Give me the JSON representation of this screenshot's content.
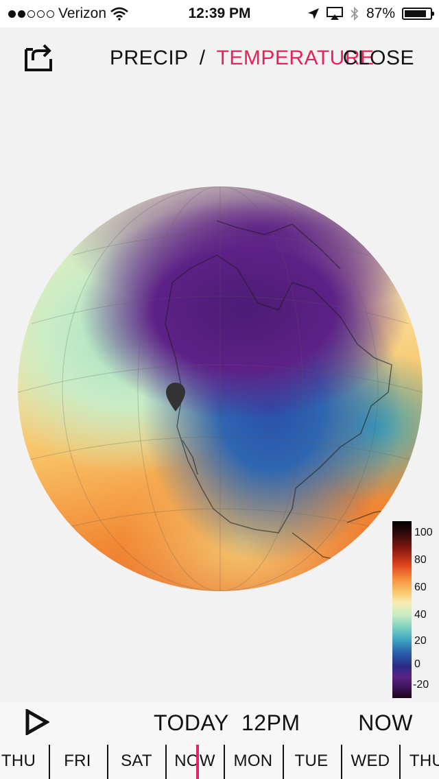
{
  "status_bar": {
    "carrier": "Verizon",
    "signal_bars_filled": 2,
    "signal_bars_total": 5,
    "time": "12:39 PM",
    "battery_percent": "87%",
    "battery_level": 0.87
  },
  "header": {
    "share_icon": "share-icon",
    "mode_precip": "PRECIP",
    "mode_separator": "/",
    "mode_temperature": "TEMPERATURE",
    "active_mode": "temperature",
    "active_color": "#e8215a",
    "close_label": "CLOSE"
  },
  "map": {
    "icons": [
      "location-pin-icon"
    ],
    "legend_ticks": [
      "100",
      "80",
      "60",
      "40",
      "20",
      "0",
      "-20"
    ]
  },
  "timeline": {
    "play_icon": "play-icon",
    "current_label": "TODAY  12PM",
    "now_label": "NOW",
    "days": [
      "THU",
      "FRI",
      "SAT",
      "NOW",
      "MON",
      "TUE",
      "WED",
      "THU"
    ],
    "cursor_color": "#e8215a"
  }
}
